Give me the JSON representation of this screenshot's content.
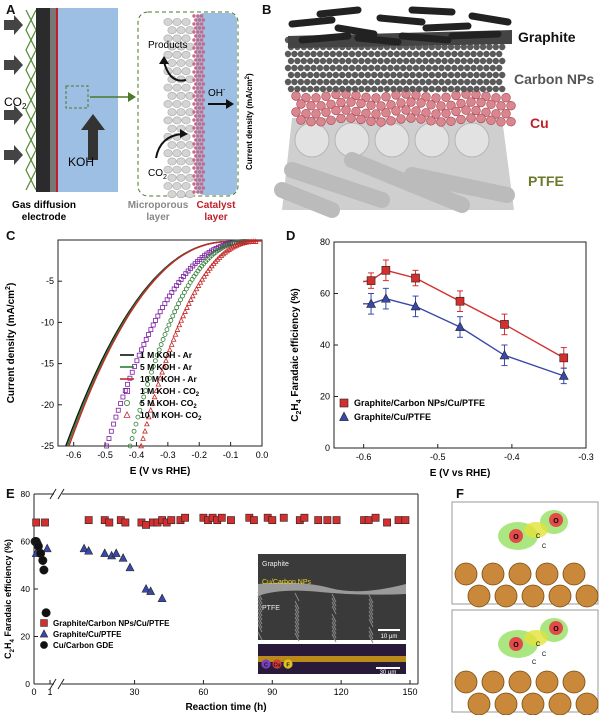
{
  "panel_a": {
    "label": "A",
    "co2": "CO",
    "co2_sub": "2",
    "koh": "KOH",
    "products": "Products",
    "co2_small": "CO",
    "co2_small_sub": "2",
    "oh": "OH",
    "oh_sup": "-",
    "current_axis": "Current density (mA/cm",
    "current_axis_sup": "2",
    "current_axis_end": ")",
    "gde_line1": "Gas diffusion",
    "gde_line2": "electrode",
    "micro_line1": "Microporous",
    "micro_line2": "layer",
    "cat_line1": "Catalyst",
    "cat_line2": "layer",
    "colors": {
      "micro": "#888888",
      "catalyst": "#c0202a",
      "electrolyte": "#9dbfe3"
    }
  },
  "panel_b": {
    "label": "B",
    "layers": [
      "Graphite",
      "Carbon NPs",
      "Cu",
      "PTFE"
    ],
    "colors": {
      "graphite": "#111111",
      "carbon": "#555555",
      "cu": "#c0202a",
      "ptfe": "#6b7a2a"
    }
  },
  "panel_f": {
    "label": "F",
    "atom_labels_top": [
      "O",
      "O",
      "C",
      "C"
    ],
    "atom_labels_bottom": [
      "O",
      "O",
      "C",
      "C",
      "C"
    ]
  },
  "sem": {
    "labels": [
      "Graphite",
      "Cu/Carbon NPs",
      "PTFE"
    ],
    "scalebar_top": "10 µm",
    "scalebar_bottom": "30 µm",
    "element_labels": [
      "C",
      "Cu",
      "F"
    ]
  },
  "chart_data": [
    {
      "label": "C",
      "type": "line",
      "xlabel": "E (V vs RHE)",
      "ylabel": "Current density (mA/cm",
      "ylabel_sup": "2",
      "ylabel_end": ")",
      "xlim": [
        -0.65,
        0.0
      ],
      "ylim": [
        -25,
        0
      ],
      "xticks": [
        "-0.6",
        "-0.5",
        "-0.4",
        "-0.3",
        "-0.2",
        "-0.1",
        "0.0"
      ],
      "yticks": [
        "-5",
        "-10",
        "-15",
        "-20",
        "-25"
      ],
      "series": [
        {
          "name": "1 M KOH - Ar",
          "color": "#111111",
          "marker": "line",
          "onset": -0.1,
          "x25": -0.625
        },
        {
          "name": "5 M KOH - Ar",
          "color": "#2e7d32",
          "marker": "line",
          "onset": -0.1,
          "x25": -0.62
        },
        {
          "name": "10 M KOH - Ar",
          "color": "#c62828",
          "marker": "line",
          "onset": -0.1,
          "x25": -0.615
        },
        {
          "name": "1 M KOH - CO",
          "name_sub": "2",
          "color": "#7b1fa2",
          "marker": "square",
          "onset": -0.05,
          "x25": -0.495
        },
        {
          "name": "5 M KOH- CO",
          "name_sub": "2",
          "color": "#2e7d32",
          "marker": "circle",
          "onset": -0.05,
          "x25": -0.42
        },
        {
          "name": "10 M KOH- CO",
          "name_sub": "2",
          "color": "#c62828",
          "marker": "triangle",
          "onset": -0.02,
          "x25": -0.385
        }
      ]
    },
    {
      "label": "D",
      "type": "scatter",
      "xlabel": "E (V vs RHE)",
      "ylabel_parts": [
        "C",
        "2",
        "H",
        "4",
        " Faradaic efficiency (%)"
      ],
      "xlim": [
        -0.64,
        -0.3
      ],
      "ylim": [
        0,
        80
      ],
      "xticks": [
        "-0.6",
        "-0.5",
        "-0.4",
        "-0.3"
      ],
      "yticks": [
        "0",
        "20",
        "40",
        "60",
        "80"
      ],
      "series": [
        {
          "name": "Graphite/Carbon NPs/Cu/PTFE",
          "color": "#d32f2f",
          "marker": "square",
          "x": [
            -0.59,
            -0.57,
            -0.53,
            -0.47,
            -0.41,
            -0.33
          ],
          "y": [
            65,
            69,
            66,
            57,
            48,
            35
          ],
          "err": [
            3,
            4,
            3,
            4,
            4,
            4
          ]
        },
        {
          "name": "Graphite/Cu/PTFE",
          "color": "#3949ab",
          "marker": "triangle",
          "x": [
            -0.59,
            -0.57,
            -0.53,
            -0.47,
            -0.41,
            -0.33
          ],
          "y": [
            56,
            58,
            55,
            47,
            36,
            28
          ],
          "err": [
            4,
            4,
            4,
            4,
            4,
            3
          ]
        }
      ]
    },
    {
      "label": "E",
      "type": "scatter",
      "xlabel": "Reaction time (h)",
      "ylabel_parts": [
        "C",
        "2",
        "H",
        "4",
        " Faradaic efficiency (%)"
      ],
      "ylim": [
        0,
        80
      ],
      "yticks": [
        "0",
        "20",
        "40",
        "60",
        "80"
      ],
      "xticks": [
        "0",
        "1",
        "30",
        "60",
        "90",
        "120",
        "150"
      ],
      "series": [
        {
          "name": "Graphite/Carbon NPs/Cu/PTFE",
          "color": "#d32f2f",
          "marker": "square",
          "x": [
            0.1,
            0.5,
            10,
            17,
            19,
            24,
            26,
            33,
            35,
            38,
            40,
            42,
            44,
            46,
            50,
            52,
            60,
            62,
            64,
            66,
            68,
            72,
            80,
            82,
            88,
            90,
            95,
            102,
            104,
            110,
            114,
            118,
            130,
            132,
            135,
            140,
            145,
            148
          ],
          "y": [
            68,
            68,
            69,
            69,
            68,
            69,
            68,
            68,
            67,
            68,
            68,
            69,
            68,
            69,
            69,
            70,
            70,
            69,
            70,
            69,
            70,
            69,
            70,
            69,
            70,
            69,
            70,
            69,
            70,
            69,
            69,
            69,
            69,
            69,
            70,
            68,
            69,
            69
          ]
        },
        {
          "name": "Graphite/Cu/PTFE",
          "color": "#3949ab",
          "marker": "triangle",
          "x": [
            0.1,
            0.6,
            8,
            10,
            17,
            20,
            22,
            25,
            28,
            35,
            37,
            42
          ],
          "y": [
            55,
            57,
            57,
            56,
            55,
            54,
            55,
            53,
            49,
            40,
            39,
            36
          ]
        },
        {
          "name": "Cu/Carbon GDE",
          "color": "#111111",
          "marker": "circle",
          "x": [
            0.05,
            0.1,
            0.15,
            0.2,
            0.3,
            0.4,
            0.45,
            0.55
          ],
          "y": [
            60,
            60,
            59,
            58,
            55,
            52,
            48,
            30
          ]
        }
      ]
    }
  ]
}
